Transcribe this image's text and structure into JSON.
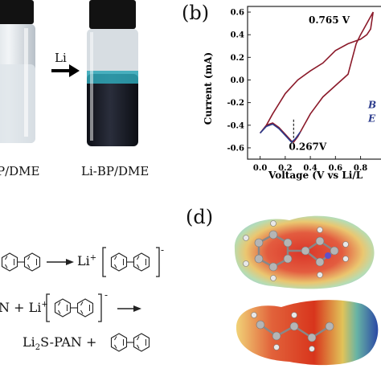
{
  "panels": {
    "b": "(b)",
    "d": "(d)"
  },
  "panel_a": {
    "left_vial_label": "P/DME",
    "arrow_label": "Li",
    "right_vial_label": "Li-BP/DME",
    "colors": {
      "clear_solution": "#dfe5ea",
      "dark_solution": "#1b1e2a",
      "blue_layer": "#2fa7b7",
      "cap": "#121212"
    }
  },
  "panel_b": {
    "chart_data": {
      "type": "line",
      "xlabel": "Voltage (V vs Li/L",
      "ylabel": "Current (mA)",
      "xlim": [
        -0.1,
        0.95
      ],
      "ylim": [
        -0.7,
        0.65
      ],
      "xticks": [
        "0.0",
        "0.2",
        "0.4",
        "0.6",
        "0.8"
      ],
      "yticks": [
        "0.6",
        "0.4",
        "0.2",
        "0.0",
        "-0.2",
        "-0.4",
        "-0.6"
      ],
      "annotations": [
        {
          "text": "0.765 V",
          "x": 0.765,
          "y": 0.32
        },
        {
          "text": "0.267V",
          "x": 0.267,
          "y": -0.55
        }
      ],
      "legend_fragments": [
        "B",
        "E"
      ],
      "series": [
        {
          "color": "#8b1a2a",
          "x": [
            0.0,
            0.05,
            0.1,
            0.15,
            0.2,
            0.25,
            0.267,
            0.3,
            0.35,
            0.4,
            0.5,
            0.6,
            0.7,
            0.765,
            0.8,
            0.85,
            0.9,
            0.88,
            0.85,
            0.8,
            0.7,
            0.6,
            0.5,
            0.4,
            0.3,
            0.2,
            0.1,
            0.05,
            0.0
          ],
          "y": [
            -0.47,
            -0.4,
            -0.38,
            -0.42,
            -0.48,
            -0.54,
            -0.55,
            -0.5,
            -0.4,
            -0.3,
            -0.15,
            -0.05,
            0.05,
            0.32,
            0.4,
            0.5,
            0.6,
            0.45,
            0.4,
            0.36,
            0.32,
            0.26,
            0.15,
            0.08,
            0.0,
            -0.12,
            -0.3,
            -0.4,
            -0.47
          ]
        },
        {
          "color": "#2a3a8b",
          "x": [
            0.0,
            0.05,
            0.1,
            0.15,
            0.2,
            0.25,
            0.28,
            0.32
          ],
          "y": [
            -0.47,
            -0.41,
            -0.39,
            -0.43,
            -0.49,
            -0.55,
            -0.52,
            -0.46
          ]
        }
      ]
    }
  },
  "panel_c": {
    "li_plus": "Li",
    "line2_prefix": "N + Li",
    "product": "Li",
    "product_sub": "2",
    "product_rest": "S-PAN +",
    "minus": "-"
  },
  "panel_d": {
    "colors": {
      "red": "#d61f10",
      "yellow": "#e8d838",
      "green": "#70c080",
      "blue": "#1f3fa0",
      "atom_gray": "#b5b5b5",
      "li_atom": "#6050c8"
    }
  }
}
